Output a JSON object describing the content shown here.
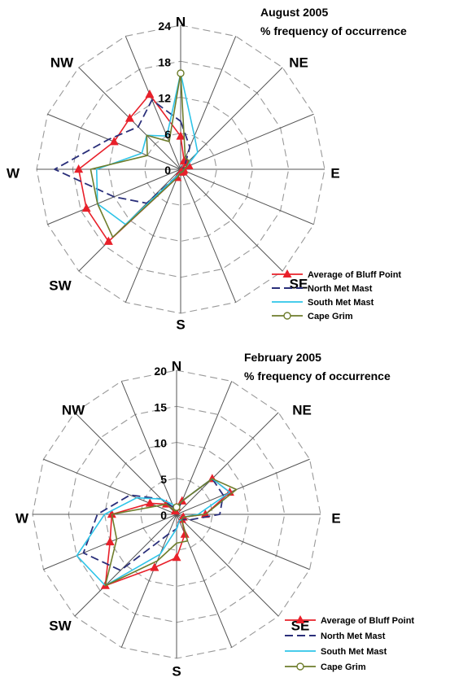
{
  "colors": {
    "bluff": "#e8202a",
    "north": "#2a2f7a",
    "south": "#2ec4e8",
    "grim": "#6e7d2c",
    "grid": "#999999"
  },
  "chart_data": [
    {
      "type": "radar",
      "title": "August 2005",
      "subtitle": "% frequency of occurrence",
      "directions": [
        "N",
        "NNE",
        "NE",
        "ENE",
        "E",
        "ESE",
        "SE",
        "SSE",
        "S",
        "SSW",
        "SW",
        "WSW",
        "W",
        "WNW",
        "NW",
        "NNW"
      ],
      "direction_labels": [
        "N",
        "NE",
        "E",
        "SE",
        "S",
        "SW",
        "W",
        "NW"
      ],
      "rlim": [
        0,
        24
      ],
      "ticks": [
        "0",
        "6",
        "12",
        "18",
        "24"
      ],
      "grid": true,
      "legend_position": "bottom-right",
      "series": [
        {
          "name": "Average of Bluff Point",
          "values": [
            5.5,
            1.5,
            1.5,
            1.5,
            0.5,
            0.5,
            0.5,
            0.5,
            0.5,
            1.5,
            17,
            17,
            17,
            12,
            12,
            13.5
          ]
        },
        {
          "name": "North Met Mast",
          "values": [
            8,
            4,
            1,
            0.5,
            0.5,
            0.5,
            0.5,
            0.5,
            0.5,
            1,
            8,
            12,
            21,
            13,
            10,
            12.5
          ]
        },
        {
          "name": "South Met Mast",
          "values": [
            16,
            6,
            4,
            1,
            0.5,
            0.5,
            0.5,
            0.5,
            0.5,
            1,
            13,
            15,
            14,
            7,
            8,
            6
          ]
        },
        {
          "name": "Cape Grim",
          "values": [
            16,
            2,
            2,
            1,
            0.5,
            0.5,
            0.5,
            0.5,
            0.5,
            1.5,
            16,
            15,
            15,
            6,
            8,
            5
          ]
        }
      ]
    },
    {
      "type": "radar",
      "title": "February 2005",
      "subtitle": "% frequency of occurrence",
      "directions": [
        "N",
        "NNE",
        "NE",
        "ENE",
        "E",
        "ESE",
        "SE",
        "SSE",
        "S",
        "SSW",
        "SW",
        "WSW",
        "W",
        "WNW",
        "NW",
        "NNW"
      ],
      "direction_labels": [
        "N",
        "NE",
        "E",
        "SE",
        "S",
        "SW",
        "W",
        "NW"
      ],
      "rlim": [
        0,
        20
      ],
      "ticks": [
        "0",
        "5",
        "10",
        "15",
        "20"
      ],
      "grid": true,
      "legend_position": "bottom-right",
      "series": [
        {
          "name": "Average of Bluff Point",
          "values": [
            1,
            2,
            7,
            8,
            4,
            1,
            1,
            3,
            6,
            8,
            14,
            10,
            9,
            4,
            2,
            0.5
          ]
        },
        {
          "name": "North Met Mast",
          "values": [
            0.5,
            2,
            7,
            7,
            6,
            2,
            1,
            1,
            2,
            3,
            11,
            14,
            11,
            7,
            3,
            1
          ]
        },
        {
          "name": "South Met Mast",
          "values": [
            1,
            2,
            7,
            8,
            3,
            1,
            1,
            1,
            2,
            6,
            14,
            15,
            10,
            6,
            3,
            1.5
          ]
        },
        {
          "name": "Cape Grim",
          "values": [
            1,
            2,
            7,
            9,
            4,
            1,
            1,
            4,
            4,
            7,
            14,
            9,
            9,
            3,
            2,
            0.5
          ]
        }
      ]
    }
  ]
}
